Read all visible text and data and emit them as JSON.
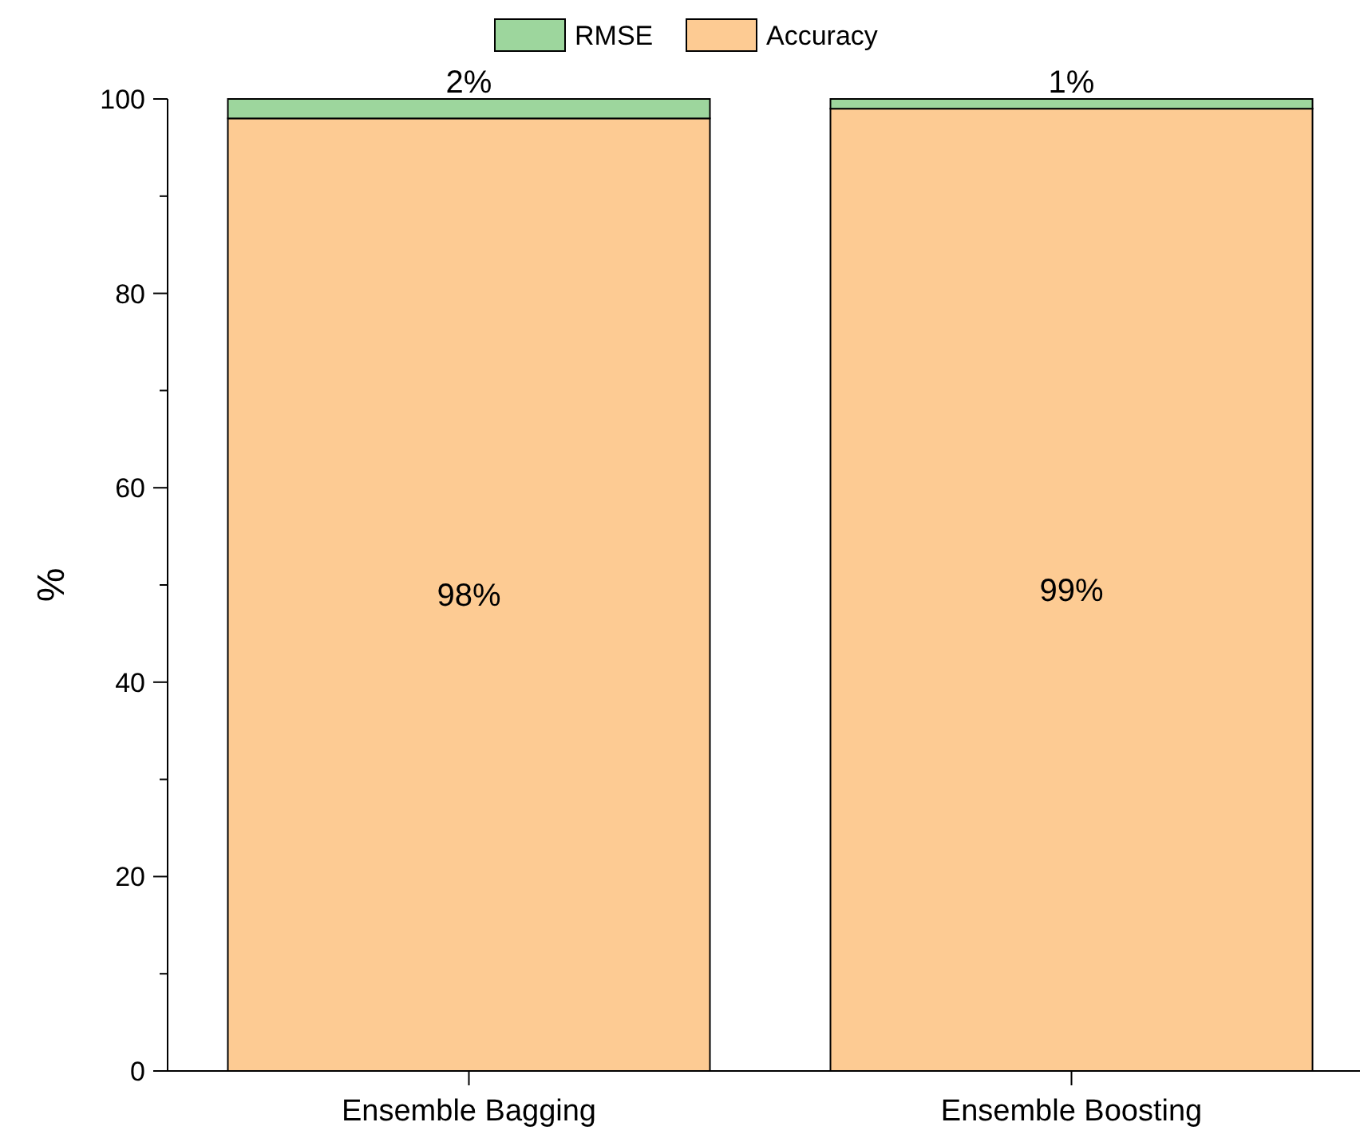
{
  "chart_data": {
    "type": "bar",
    "stacked": true,
    "ylabel": "%",
    "categories": [
      "Ensemble Bagging",
      "Ensemble Boosting"
    ],
    "series": [
      {
        "name": "Accuracy",
        "color": "#fdcb93",
        "values": [
          98,
          99
        ],
        "value_labels": [
          "98%",
          "99%"
        ]
      },
      {
        "name": "RMSE",
        "color": "#9dd69d",
        "values": [
          2,
          1
        ],
        "value_labels": [
          "2%",
          "1%"
        ]
      }
    ],
    "ylim": [
      0,
      100
    ],
    "yticks": [
      0,
      {
        "value": 10,
        "label": null
      },
      20,
      {
        "value": 30,
        "label": null
      },
      40,
      {
        "value": 50,
        "label": null
      },
      60,
      {
        "value": 70,
        "label": null
      },
      80,
      {
        "value": 90,
        "label": null
      },
      100
    ],
    "legend": "top",
    "grid": false
  }
}
